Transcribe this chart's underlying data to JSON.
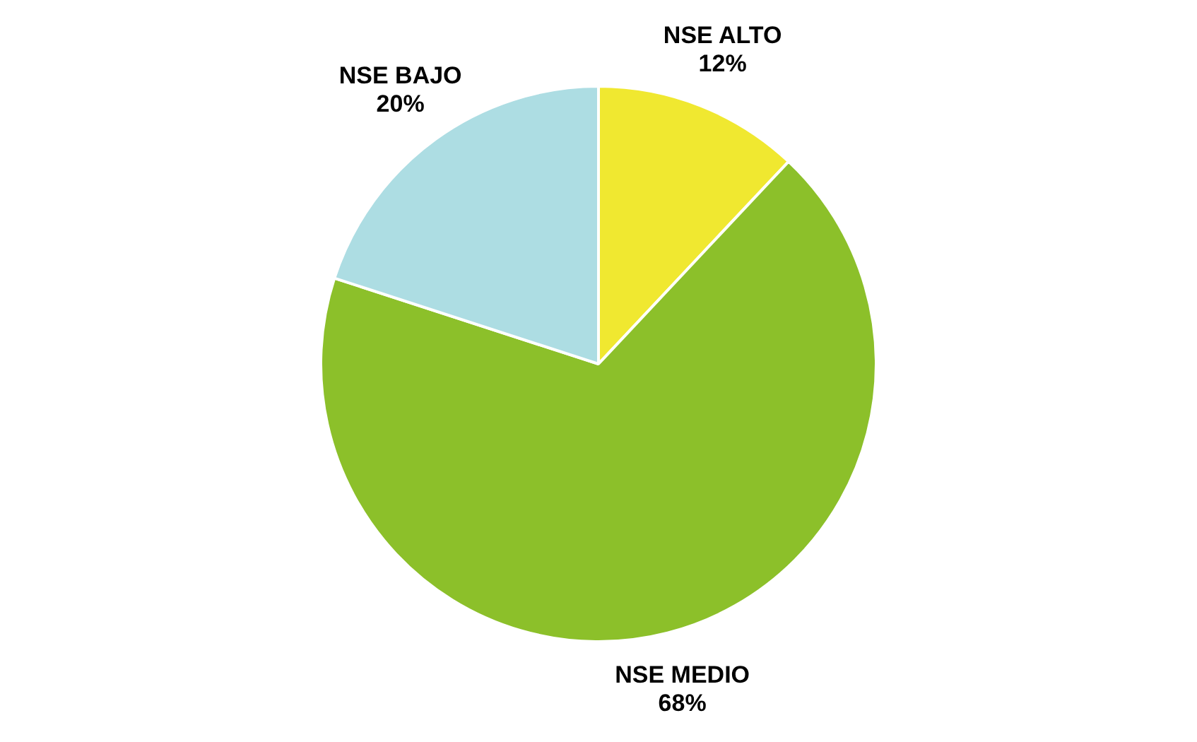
{
  "chart_data": {
    "type": "pie",
    "categories": [
      "NSE ALTO",
      "NSE MEDIO",
      "NSE BAJO"
    ],
    "values": [
      12,
      68,
      20
    ],
    "colors": [
      "#f0e830",
      "#8cc02a",
      "#addde3"
    ],
    "value_labels": [
      "12%",
      "68%",
      "20%"
    ],
    "legend": false
  }
}
